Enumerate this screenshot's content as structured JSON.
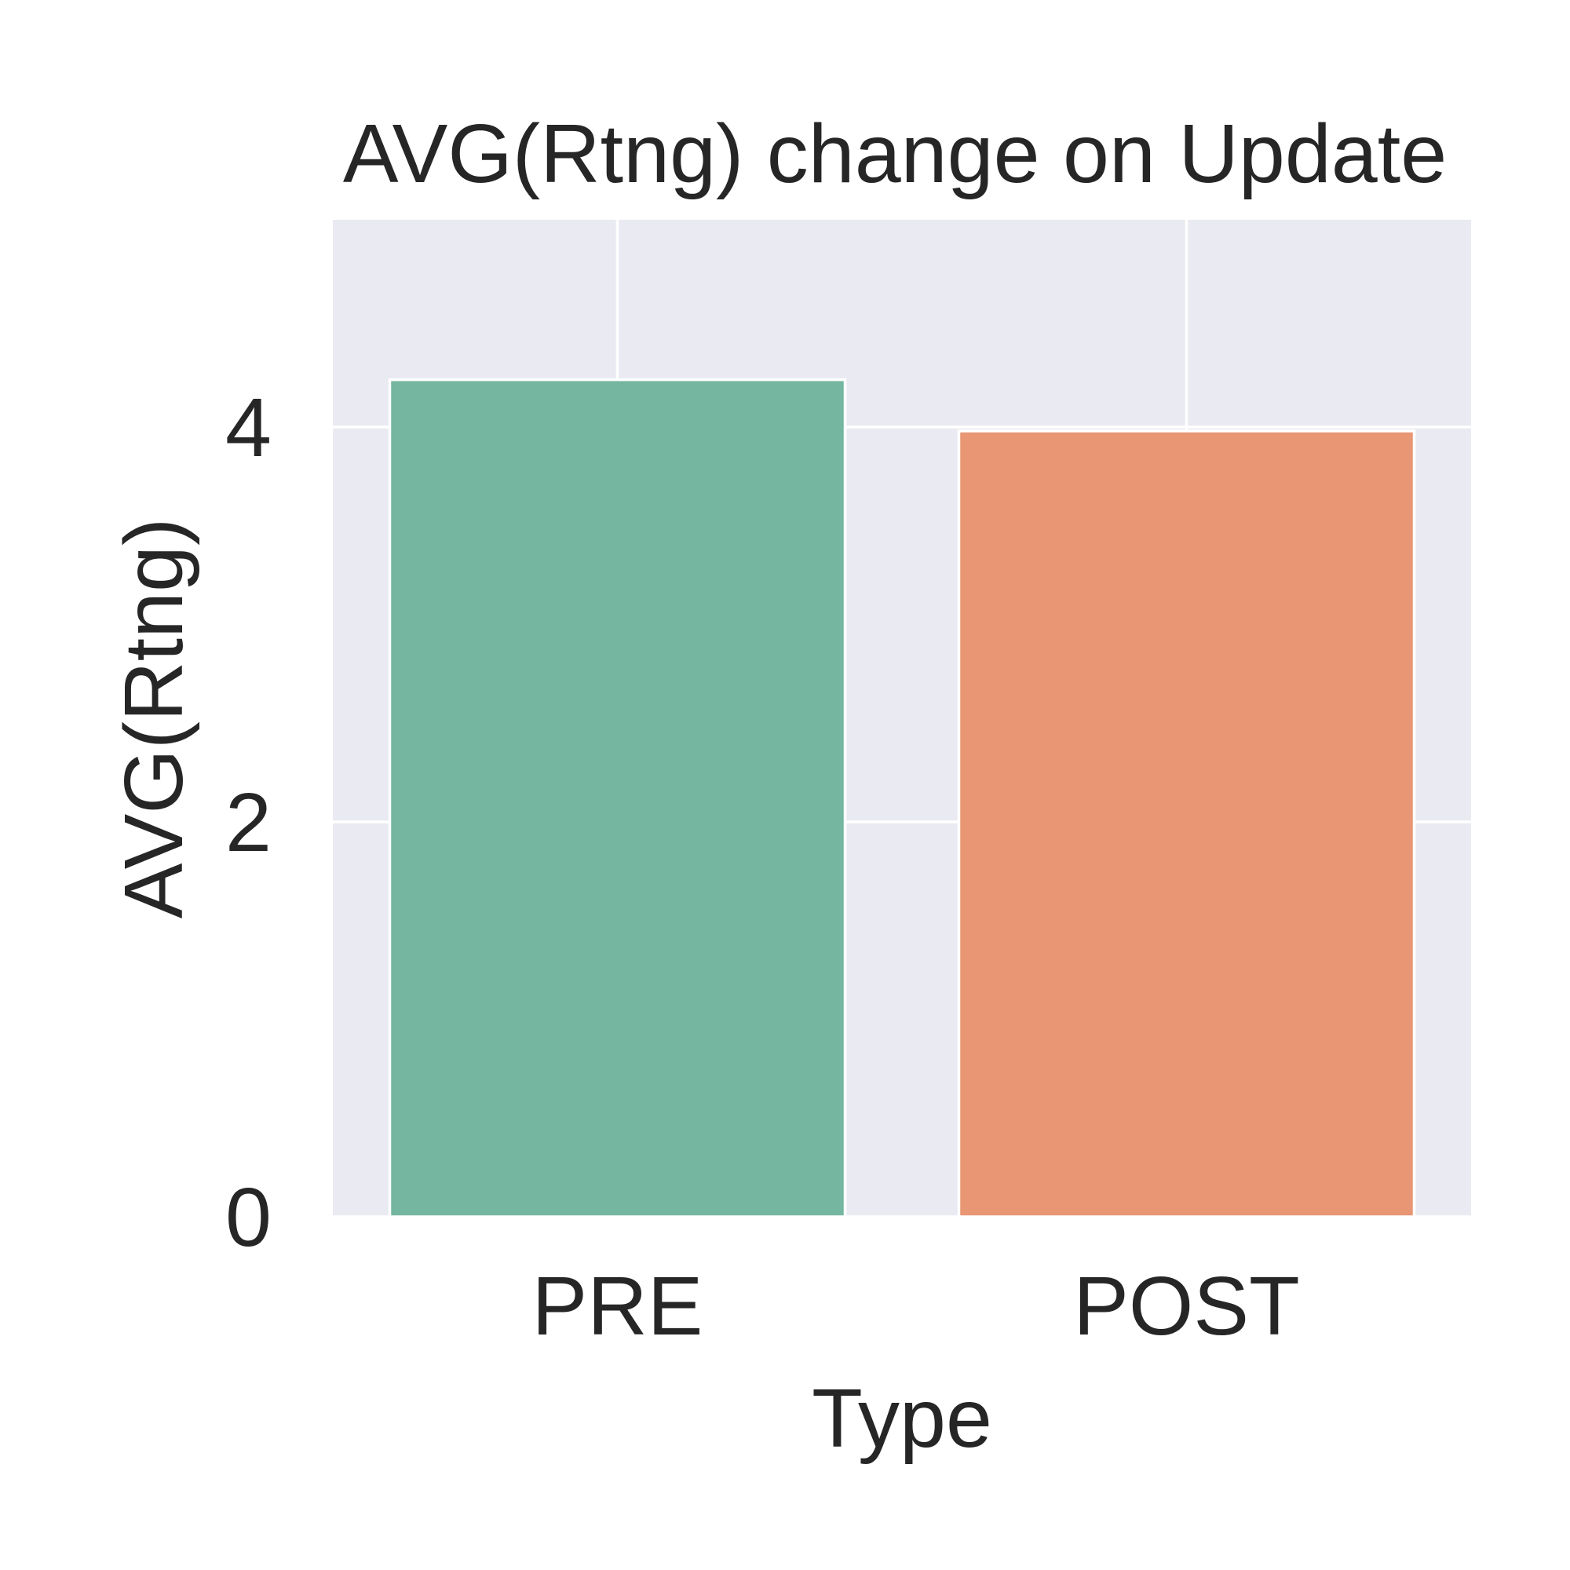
{
  "chart_data": {
    "type": "bar",
    "title": "AVG(Rtng) change on Update",
    "xlabel": "Type",
    "ylabel": "AVG(Rtng)",
    "categories": [
      "PRE",
      "POST"
    ],
    "values": [
      4.24,
      3.98
    ],
    "ylim": [
      0,
      5.05
    ],
    "yticks": [
      0,
      2,
      4
    ],
    "ytick_labels": [
      "0",
      "2",
      "4"
    ],
    "grid": true,
    "legend": "none",
    "colors": {
      "bars": [
        "#74b6a0",
        "#e89674"
      ],
      "plot_background": "#eaeaf2",
      "grid": "#ffffff",
      "text": "#262626"
    }
  }
}
